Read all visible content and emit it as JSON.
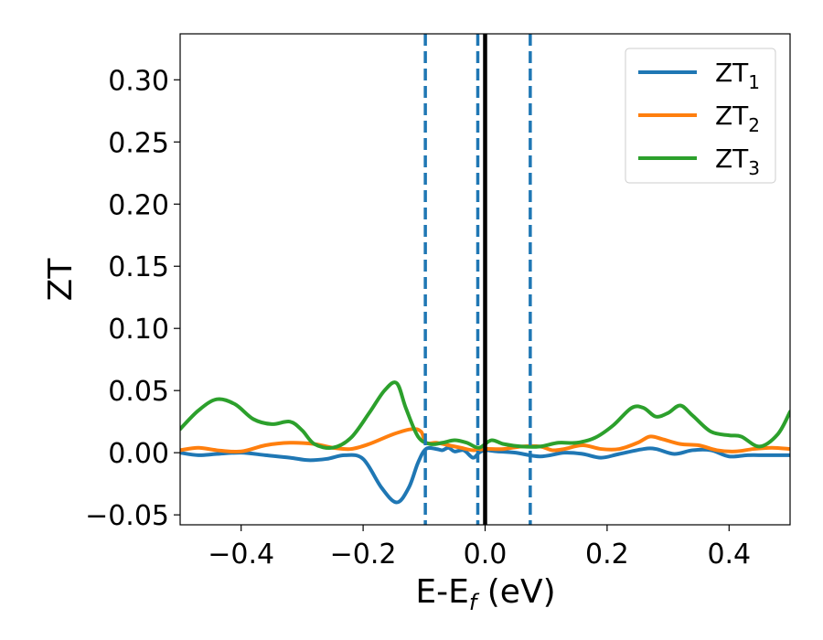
{
  "chart_data": {
    "type": "line",
    "xlabel": "E-E_f (eV)",
    "xlabel_parts": {
      "main": "E-E",
      "sub": "f",
      "tail": " (eV)"
    },
    "ylabel": "ZT",
    "xlim": [
      -0.5,
      0.5
    ],
    "ylim": [
      -0.058,
      0.337
    ],
    "xticks": [
      -0.4,
      -0.2,
      0.0,
      0.2,
      0.4
    ],
    "xtick_labels": [
      "−0.4",
      "−0.2",
      "0.0",
      "0.2",
      "0.4"
    ],
    "yticks": [
      -0.05,
      0.0,
      0.05,
      0.1,
      0.15,
      0.2,
      0.25,
      0.3
    ],
    "ytick_labels": [
      "−0.05",
      "0.00",
      "0.05",
      "0.10",
      "0.15",
      "0.20",
      "0.25",
      "0.30"
    ],
    "grid": false,
    "legend_position": "top-right",
    "vertical_lines": [
      {
        "x": -0.098,
        "style": "dashed",
        "color": "#1f77b4"
      },
      {
        "x": -0.012,
        "style": "dashed",
        "color": "#1f77b4"
      },
      {
        "x": 0.0,
        "style": "solid",
        "color": "#000000"
      },
      {
        "x": 0.074,
        "style": "dashed",
        "color": "#1f77b4"
      }
    ],
    "series": [
      {
        "name": "ZT_1",
        "label_main": "ZT",
        "label_sub": "1",
        "color": "#1f77b4",
        "points": [
          [
            -0.5,
            0.0
          ],
          [
            -0.47,
            -0.002
          ],
          [
            -0.44,
            -0.001
          ],
          [
            -0.4,
            0.0
          ],
          [
            -0.36,
            -0.002
          ],
          [
            -0.32,
            -0.004
          ],
          [
            -0.29,
            -0.006
          ],
          [
            -0.26,
            -0.005
          ],
          [
            -0.23,
            -0.002
          ],
          [
            -0.2,
            -0.005
          ],
          [
            -0.17,
            -0.028
          ],
          [
            -0.145,
            -0.04
          ],
          [
            -0.125,
            -0.028
          ],
          [
            -0.11,
            -0.008
          ],
          [
            -0.097,
            0.003
          ],
          [
            -0.08,
            0.003
          ],
          [
            -0.07,
            0.002
          ],
          [
            -0.06,
            0.004
          ],
          [
            -0.05,
            0.001
          ],
          [
            -0.035,
            0.002
          ],
          [
            -0.02,
            -0.004
          ],
          [
            -0.01,
            0.0
          ],
          [
            0.0,
            0.002
          ],
          [
            0.02,
            0.001
          ],
          [
            0.05,
            0.0
          ],
          [
            0.09,
            -0.003
          ],
          [
            0.13,
            0.0
          ],
          [
            0.16,
            -0.001
          ],
          [
            0.19,
            -0.004
          ],
          [
            0.22,
            -0.001
          ],
          [
            0.26,
            0.003
          ],
          [
            0.28,
            0.003
          ],
          [
            0.31,
            -0.001
          ],
          [
            0.34,
            0.002
          ],
          [
            0.37,
            0.002
          ],
          [
            0.4,
            -0.003
          ],
          [
            0.43,
            -0.002
          ],
          [
            0.46,
            -0.002
          ],
          [
            0.5,
            -0.002
          ]
        ]
      },
      {
        "name": "ZT_2",
        "label_main": "ZT",
        "label_sub": "2",
        "color": "#ff7f0e",
        "points": [
          [
            -0.5,
            0.002
          ],
          [
            -0.47,
            0.004
          ],
          [
            -0.44,
            0.002
          ],
          [
            -0.4,
            0.001
          ],
          [
            -0.36,
            0.006
          ],
          [
            -0.32,
            0.008
          ],
          [
            -0.28,
            0.007
          ],
          [
            -0.25,
            0.004
          ],
          [
            -0.22,
            0.003
          ],
          [
            -0.19,
            0.007
          ],
          [
            -0.15,
            0.015
          ],
          [
            -0.12,
            0.019
          ],
          [
            -0.105,
            0.017
          ],
          [
            -0.097,
            0.008
          ],
          [
            -0.08,
            0.008
          ],
          [
            -0.06,
            0.006
          ],
          [
            -0.04,
            0.004
          ],
          [
            -0.02,
            0.002
          ],
          [
            0.0,
            0.003
          ],
          [
            0.03,
            0.003
          ],
          [
            0.06,
            0.005
          ],
          [
            0.09,
            0.005
          ],
          [
            0.11,
            0.002
          ],
          [
            0.13,
            0.003
          ],
          [
            0.16,
            0.006
          ],
          [
            0.19,
            0.003
          ],
          [
            0.22,
            0.003
          ],
          [
            0.25,
            0.008
          ],
          [
            0.27,
            0.013
          ],
          [
            0.29,
            0.011
          ],
          [
            0.32,
            0.007
          ],
          [
            0.35,
            0.006
          ],
          [
            0.38,
            0.002
          ],
          [
            0.41,
            0.001
          ],
          [
            0.44,
            0.003
          ],
          [
            0.47,
            0.004
          ],
          [
            0.5,
            0.003
          ]
        ]
      },
      {
        "name": "ZT_3",
        "label_main": "ZT",
        "label_sub": "3",
        "color": "#2ca02c",
        "points": [
          [
            -0.5,
            0.019
          ],
          [
            -0.47,
            0.034
          ],
          [
            -0.44,
            0.043
          ],
          [
            -0.41,
            0.039
          ],
          [
            -0.38,
            0.027
          ],
          [
            -0.35,
            0.023
          ],
          [
            -0.32,
            0.025
          ],
          [
            -0.3,
            0.018
          ],
          [
            -0.28,
            0.007
          ],
          [
            -0.25,
            0.004
          ],
          [
            -0.22,
            0.012
          ],
          [
            -0.19,
            0.032
          ],
          [
            -0.165,
            0.05
          ],
          [
            -0.145,
            0.056
          ],
          [
            -0.13,
            0.036
          ],
          [
            -0.11,
            0.013
          ],
          [
            -0.09,
            0.007
          ],
          [
            -0.07,
            0.008
          ],
          [
            -0.05,
            0.01
          ],
          [
            -0.03,
            0.008
          ],
          [
            -0.01,
            0.004
          ],
          [
            0.01,
            0.01
          ],
          [
            0.03,
            0.007
          ],
          [
            0.06,
            0.005
          ],
          [
            0.09,
            0.005
          ],
          [
            0.12,
            0.008
          ],
          [
            0.15,
            0.008
          ],
          [
            0.18,
            0.012
          ],
          [
            0.21,
            0.022
          ],
          [
            0.24,
            0.036
          ],
          [
            0.26,
            0.036
          ],
          [
            0.28,
            0.029
          ],
          [
            0.3,
            0.032
          ],
          [
            0.32,
            0.038
          ],
          [
            0.34,
            0.03
          ],
          [
            0.37,
            0.017
          ],
          [
            0.4,
            0.014
          ],
          [
            0.42,
            0.013
          ],
          [
            0.45,
            0.005
          ],
          [
            0.48,
            0.015
          ],
          [
            0.5,
            0.033
          ]
        ]
      }
    ]
  }
}
